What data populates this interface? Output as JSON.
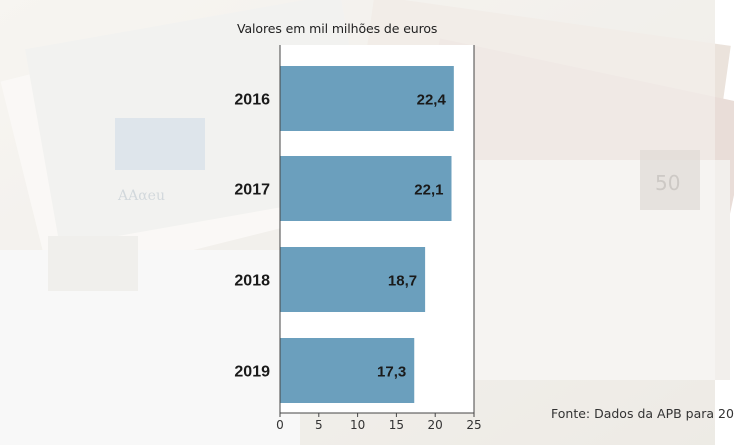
{
  "subtitle": "Valores em mil milhões de euros",
  "source": "Fonte: Dados da APB para 20",
  "colors": {
    "bar": "#6b9fbd",
    "axis": "#444444",
    "text": "#1a1a1a"
  },
  "chart_data": {
    "type": "bar",
    "orientation": "horizontal",
    "categories": [
      "2016",
      "2017",
      "2018",
      "2019"
    ],
    "values": [
      22.4,
      22.1,
      18.7,
      17.3
    ],
    "value_labels": [
      "22,4",
      "22,1",
      "18,7",
      "17,3"
    ],
    "title": "",
    "subtitle": "Valores em mil milhões de euros",
    "xlabel": "",
    "ylabel": "",
    "xlim": [
      0,
      25
    ],
    "xticks": [
      0,
      5,
      10,
      15,
      20,
      25
    ],
    "grid": false,
    "legend": "none"
  }
}
